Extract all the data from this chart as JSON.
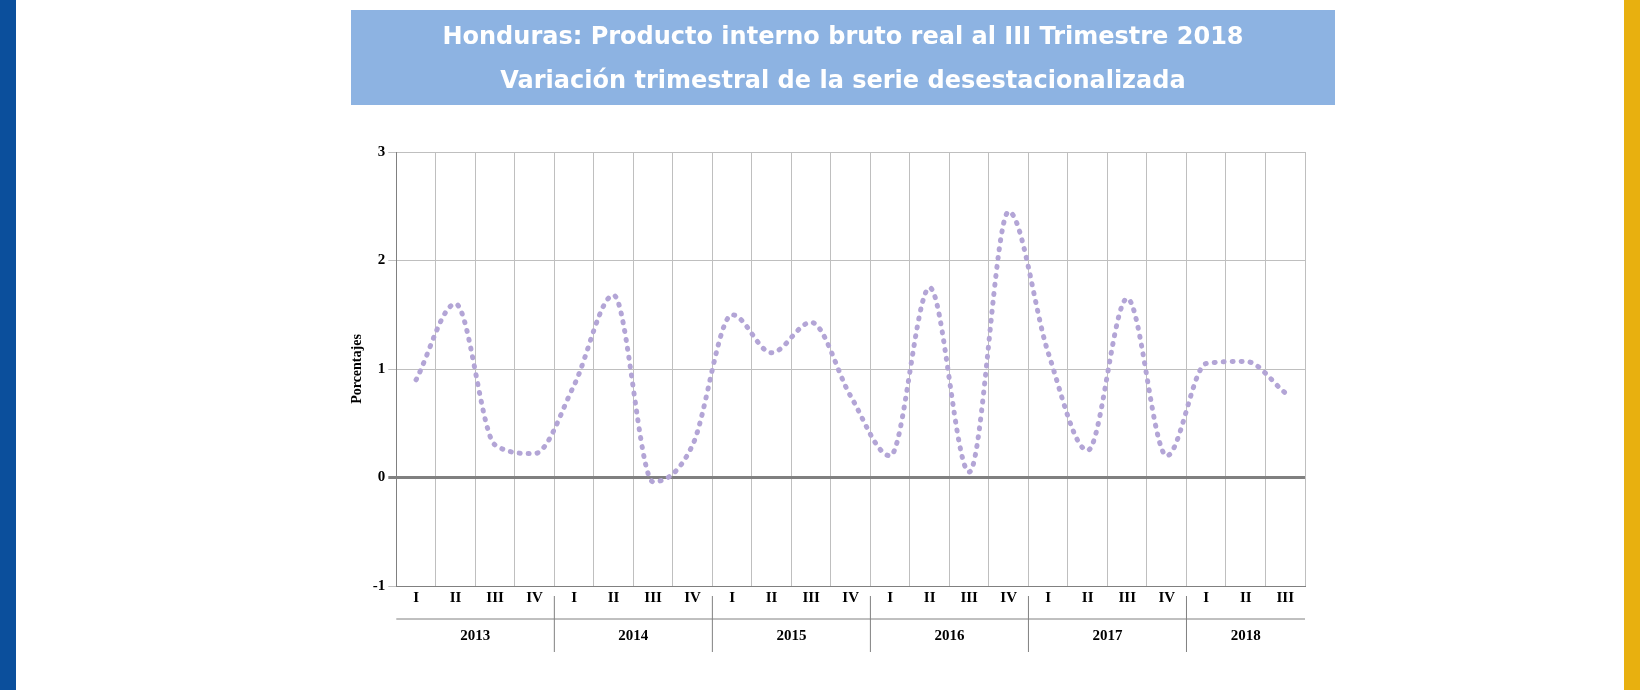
{
  "chart_data": {
    "type": "line",
    "title": "Honduras: Producto interno bruto real al III Trimestre 2018",
    "subtitle": "Variación trimestral de la serie desestacionalizada",
    "ylabel": "Porcentajes",
    "categories": [
      "I",
      "II",
      "III",
      "IV",
      "I",
      "II",
      "III",
      "IV",
      "I",
      "II",
      "III",
      "IV",
      "I",
      "II",
      "III",
      "IV",
      "I",
      "II",
      "III",
      "IV",
      "I",
      "II",
      "III"
    ],
    "series": [
      {
        "color": "#b3a5d6",
        "values": [
          0.9,
          1.6,
          0.3,
          0.22,
          0.85,
          1.68,
          -0.04,
          0.3,
          1.5,
          1.15,
          1.43,
          0.75,
          0.2,
          1.75,
          0.05,
          2.45,
          1.15,
          0.25,
          1.65,
          0.2,
          1.05,
          1.07,
          0.78
        ]
      }
    ],
    "annotations": [
      "2013",
      "2014",
      "2015",
      "2016",
      "2017",
      "2018"
    ],
    "ylim": [
      -1,
      3
    ],
    "yticks": [
      -1,
      0,
      1,
      2,
      3
    ],
    "grid": true,
    "legend": false,
    "marker": "none",
    "line_style": "dotted"
  }
}
